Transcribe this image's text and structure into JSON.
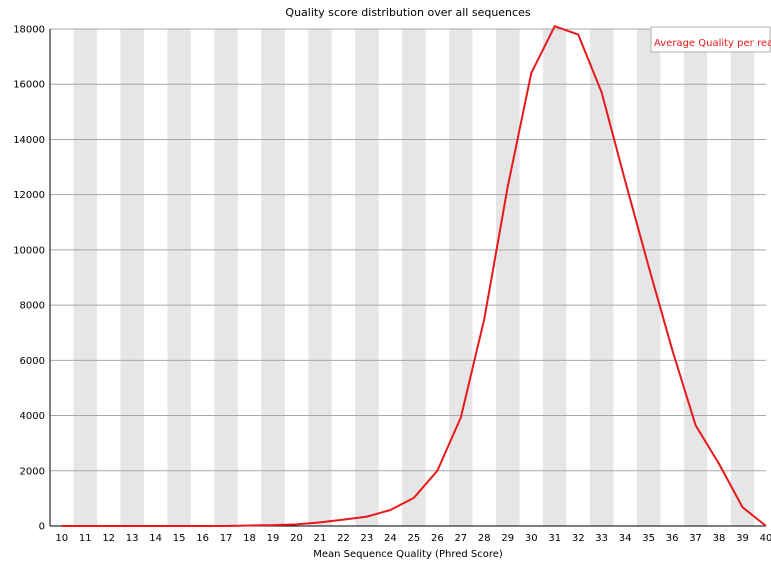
{
  "chart_data": {
    "type": "line",
    "title": "Quality score distribution over all sequences",
    "xlabel": "Mean Sequence Quality (Phred Score)",
    "ylabel": "",
    "x": [
      10,
      11,
      12,
      13,
      14,
      15,
      16,
      17,
      18,
      19,
      20,
      21,
      22,
      23,
      24,
      25,
      26,
      27,
      28,
      29,
      30,
      31,
      32,
      33,
      34,
      35,
      36,
      37,
      38,
      39,
      40
    ],
    "xlim": [
      10,
      40
    ],
    "ylim": [
      0,
      18000
    ],
    "yticks": [
      0,
      2000,
      4000,
      6000,
      8000,
      10000,
      12000,
      14000,
      16000,
      18000
    ],
    "grid": "horizontal lines with alternating vertical grey bands",
    "legend_position": "top-right",
    "series": [
      {
        "name": "Average Quality per read",
        "color": "#e8191a",
        "values": [
          0,
          0,
          0,
          0,
          0,
          0,
          0,
          0,
          20,
          30,
          60,
          130,
          230,
          340,
          580,
          1020,
          2000,
          3930,
          7500,
          12300,
          16400,
          18100,
          17800,
          15700,
          12500,
          9400,
          6400,
          3650,
          2250,
          680,
          0
        ]
      }
    ]
  }
}
